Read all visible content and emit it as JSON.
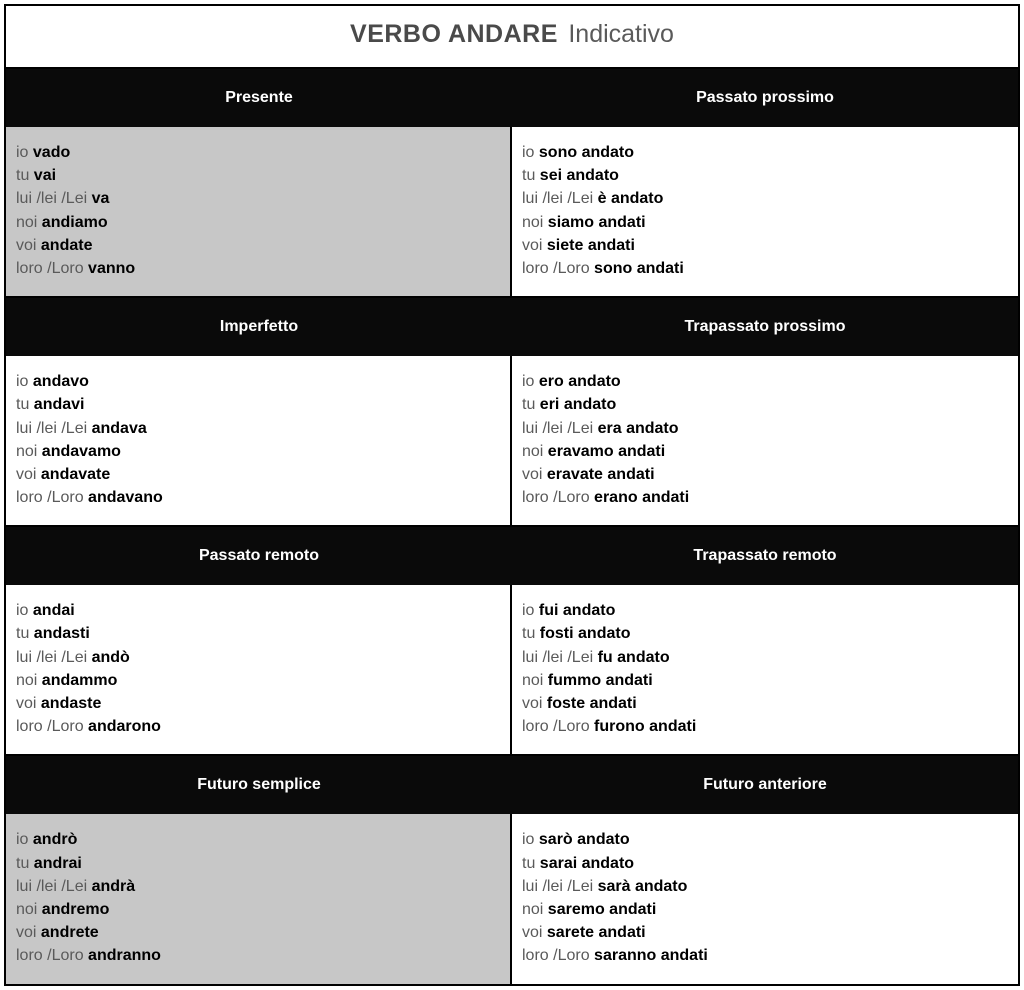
{
  "title": {
    "verb": "VERBO ANDARE",
    "mood": "Indicativo"
  },
  "pronouns": [
    "io",
    "tu",
    "lui /lei /Lei",
    "noi",
    "voi",
    "loro /Loro"
  ],
  "tenses": [
    {
      "left": {
        "name": "Presente",
        "shaded": true,
        "forms": [
          "vado",
          "vai",
          "va",
          "andiamo",
          "andate",
          "vanno"
        ]
      },
      "right": {
        "name": "Passato prossimo",
        "shaded": false,
        "forms": [
          "sono andato",
          "sei andato",
          "è andato",
          "siamo andati",
          "siete andati",
          "sono andati"
        ]
      }
    },
    {
      "left": {
        "name": "Imperfetto",
        "shaded": false,
        "forms": [
          "andavo",
          "andavi",
          "andava",
          "andavamo",
          "andavate",
          "andavano"
        ]
      },
      "right": {
        "name": "Trapassato prossimo",
        "shaded": false,
        "forms": [
          "ero andato",
          "eri andato",
          "era andato",
          "eravamo andati",
          "eravate andati",
          "erano andati"
        ]
      }
    },
    {
      "left": {
        "name": "Passato remoto",
        "shaded": false,
        "forms": [
          "andai",
          "andasti",
          "andò",
          "andammo",
          "andaste",
          "andarono"
        ]
      },
      "right": {
        "name": "Trapassato remoto",
        "shaded": false,
        "forms": [
          "fui andato",
          "fosti andato",
          "fu andato",
          "fummo andati",
          "foste andati",
          "furono andati"
        ]
      }
    },
    {
      "left": {
        "name": "Futuro semplice",
        "shaded": true,
        "forms": [
          "andrò",
          "andrai",
          "andrà",
          "andremo",
          "andrete",
          "andranno"
        ]
      },
      "right": {
        "name": "Futuro anteriore",
        "shaded": false,
        "forms": [
          "sarò andato",
          "sarai andato",
          "sarà andato",
          "saremo andati",
          "sarete andati",
          "saranno andati"
        ]
      }
    }
  ]
}
